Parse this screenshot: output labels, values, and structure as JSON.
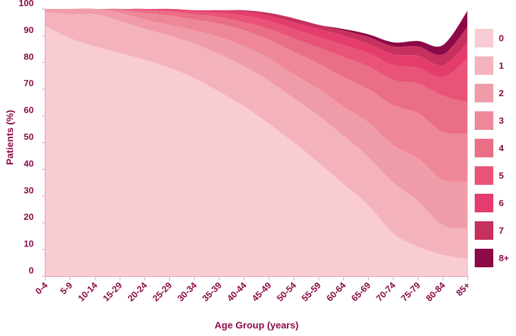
{
  "chart_data": {
    "type": "area",
    "stacked": true,
    "title": "",
    "xlabel": "Age Group (years)",
    "ylabel": "Patients (%)",
    "ylim": [
      0,
      100
    ],
    "yticks": [
      0,
      10,
      20,
      30,
      40,
      50,
      60,
      70,
      80,
      90,
      100
    ],
    "grid": false,
    "legend_position": "right",
    "categories": [
      "0-4",
      "5-9",
      "10-14",
      "15-29",
      "20-24",
      "25-29",
      "30-34",
      "35-39",
      "40-44",
      "45-49",
      "50-54",
      "55-59",
      "60-64",
      "65-69",
      "70-74",
      "75-79",
      "80-84",
      "85+"
    ],
    "series": [
      {
        "name": "0",
        "color": "#f9cbd3",
        "values": [
          93.5,
          89,
          86,
          83.5,
          81,
          78,
          74,
          69,
          63.5,
          57,
          50,
          42.5,
          34.5,
          26.5,
          16,
          11,
          8,
          6.5
        ]
      },
      {
        "name": "1",
        "color": "#f4b3bc",
        "values": [
          5.5,
          9,
          12,
          12,
          11.5,
          12,
          13,
          14,
          15,
          16,
          16.5,
          17.5,
          18,
          18,
          19,
          17,
          11,
          11.5
        ]
      },
      {
        "name": "2",
        "color": "#f09ca8",
        "values": [
          1,
          2,
          2,
          3,
          3.5,
          4,
          5,
          6.5,
          7.5,
          8.5,
          9,
          10,
          11,
          13,
          14,
          16,
          17,
          17.5
        ]
      },
      {
        "name": "3",
        "color": "#ee8797",
        "values": [
          0,
          0,
          0,
          1,
          2.5,
          3.5,
          4,
          5,
          6,
          7,
          8.5,
          9.5,
          11,
          12.5,
          15,
          17,
          18,
          18
        ]
      },
      {
        "name": "4",
        "color": "#ea6e84",
        "values": [
          0,
          0,
          0,
          0.5,
          1,
          1.5,
          2,
          2.5,
          3,
          4,
          5,
          6,
          7.5,
          8.5,
          9.5,
          11,
          13.5,
          11.5
        ]
      },
      {
        "name": "5",
        "color": "#e85377",
        "values": [
          0,
          0,
          0,
          0,
          0.5,
          0.5,
          1,
          1.5,
          2.5,
          3,
          3.5,
          4,
          4.5,
          5,
          5.5,
          6,
          7,
          16.5
        ]
      },
      {
        "name": "6",
        "color": "#e43d6d",
        "values": [
          0,
          0,
          0,
          0,
          0,
          0.5,
          0.5,
          1,
          1.5,
          2,
          2.5,
          3,
          3.5,
          3.5,
          4,
          4.5,
          4.5,
          6
        ]
      },
      {
        "name": "7",
        "color": "#c7315e",
        "values": [
          0,
          0,
          0,
          0,
          0,
          0,
          0,
          0,
          0.5,
          1,
          1.5,
          1.5,
          2,
          2.5,
          3,
          3.5,
          4,
          6
        ]
      },
      {
        "name": "8+",
        "color": "#8b0a47",
        "values": [
          0,
          0,
          0,
          0,
          0,
          0,
          0,
          0,
          0,
          0,
          0,
          0,
          0.5,
          1,
          1.5,
          2,
          3.5,
          6
        ]
      }
    ]
  }
}
